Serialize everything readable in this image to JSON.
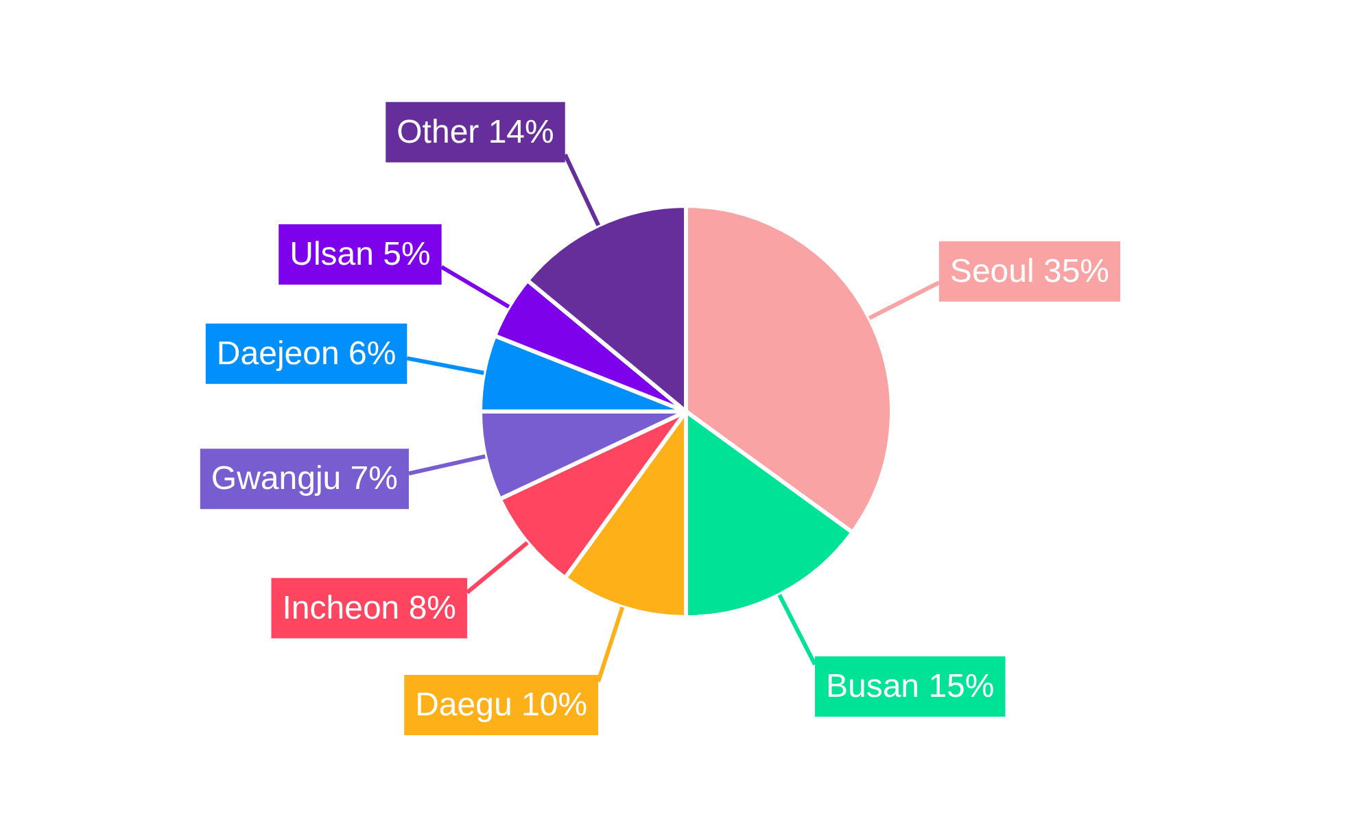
{
  "chart_data": {
    "type": "pie",
    "categories": [
      "Seoul",
      "Busan",
      "Daegu",
      "Incheon",
      "Gwangju",
      "Daejeon",
      "Ulsan",
      "Other"
    ],
    "values": [
      35,
      15,
      10,
      8,
      7,
      6,
      5,
      14
    ],
    "value_labels": [
      "35%",
      "15%",
      "10%",
      "8%",
      "7%",
      "6%",
      "5%",
      "14%"
    ],
    "colors": [
      "#f9a3a4",
      "#00e396",
      "#feb019",
      "#ff4560",
      "#775dd0",
      "#008ffb",
      "#7d02eb",
      "#662e9b"
    ],
    "legend": false
  }
}
